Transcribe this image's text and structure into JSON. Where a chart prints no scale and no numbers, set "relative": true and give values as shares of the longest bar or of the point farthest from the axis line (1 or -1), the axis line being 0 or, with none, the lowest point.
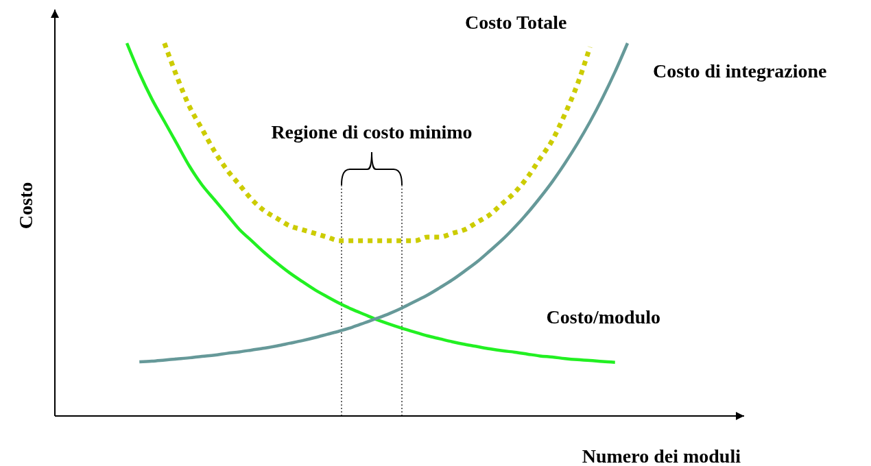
{
  "chart_data": {
    "type": "line",
    "relative": true,
    "xlabel": "Numero dei moduli",
    "ylabel": "Costo",
    "legend": false,
    "categories": [
      null,
      null,
      null,
      null,
      null,
      null,
      null,
      null,
      null,
      null,
      null,
      null,
      null,
      null,
      null,
      null,
      null,
      null,
      null,
      null,
      null,
      null,
      null,
      null,
      null,
      null,
      null,
      null,
      null,
      null,
      null,
      null,
      null,
      null,
      null,
      null,
      null,
      null,
      null,
      null,
      null
    ],
    "series": [
      {
        "name": "Costo/modulo",
        "color": "#22f022",
        "values": [
          1.0,
          0.92,
          0.85,
          0.79,
          0.73,
          0.67,
          0.62,
          0.58,
          0.54,
          0.5,
          0.469,
          0.438,
          0.41,
          0.384,
          0.361,
          0.339,
          0.32,
          0.302,
          0.286,
          0.272,
          0.258,
          0.246,
          0.235,
          0.225,
          0.215,
          0.207,
          0.199,
          0.192,
          0.186,
          0.18,
          0.175,
          0.171,
          0.166,
          0.161,
          0.158,
          0.154,
          0.151,
          0.149,
          0.146,
          0.144,
          null
        ]
      },
      {
        "name": "Costo di integrazione",
        "color": "#669999",
        "values": [
          null,
          0.145,
          0.147,
          0.15,
          0.153,
          0.156,
          0.16,
          0.163,
          0.168,
          0.172,
          0.177,
          0.182,
          0.188,
          0.195,
          0.202,
          0.21,
          0.219,
          0.228,
          0.238,
          0.25,
          0.262,
          0.275,
          0.29,
          0.307,
          0.324,
          0.344,
          0.365,
          0.389,
          0.414,
          0.443,
          0.473,
          0.507,
          0.544,
          0.585,
          0.629,
          0.678,
          0.731,
          0.789,
          0.853,
          0.923,
          1.0
        ]
      },
      {
        "name": "Costo Totale",
        "color": "#cccc00",
        "line_style": "dotted",
        "values": [
          null,
          null,
          null,
          1.0,
          0.91,
          0.83,
          0.77,
          0.71,
          0.66,
          0.62,
          0.58,
          0.55,
          0.53,
          0.51,
          0.5,
          0.49,
          0.48,
          0.47,
          0.47,
          0.47,
          0.47,
          0.47,
          0.47,
          0.47,
          0.48,
          0.48,
          0.49,
          0.5,
          0.52,
          0.54,
          0.57,
          0.6,
          0.64,
          0.69,
          0.74,
          0.81,
          0.89,
          0.99,
          null,
          null,
          null
        ]
      }
    ],
    "annotations": [
      "Regione di costo minimo"
    ]
  }
}
